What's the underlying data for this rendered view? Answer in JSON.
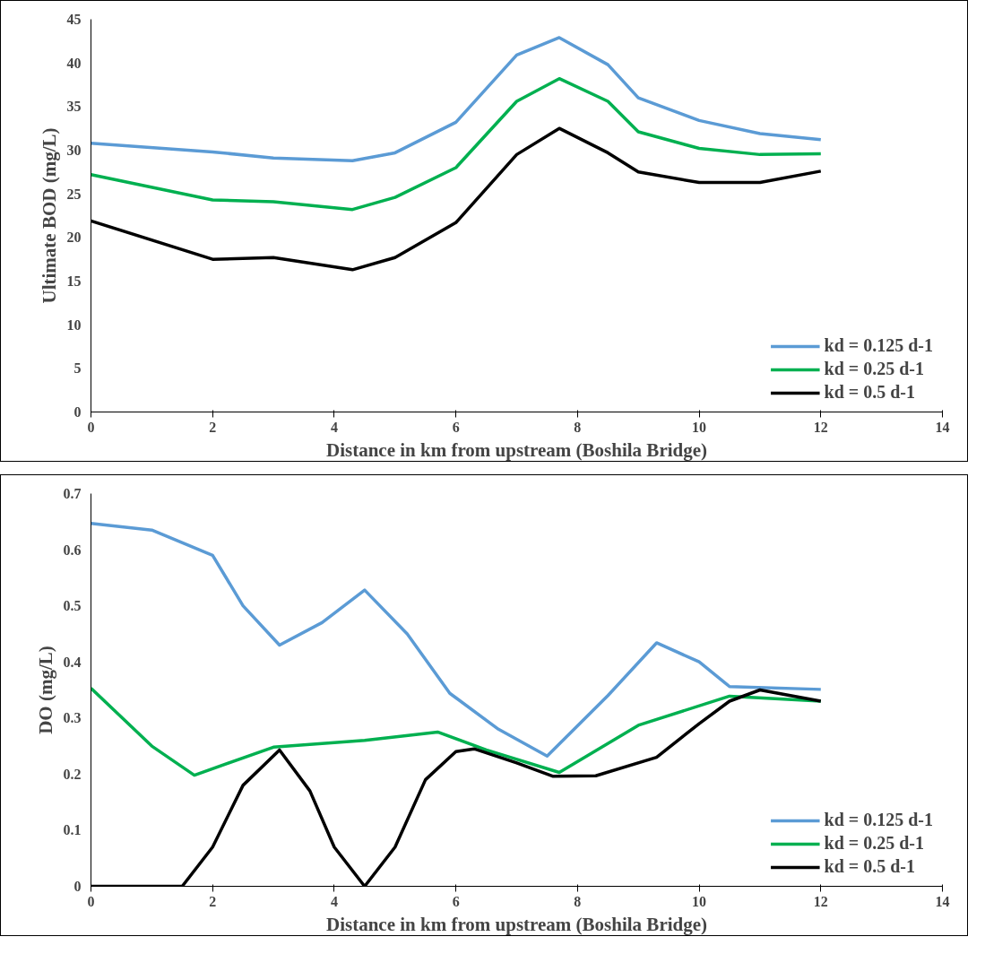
{
  "chart_data": [
    {
      "type": "line",
      "xlabel": "Distance in km from upstream (Boshila Bridge)",
      "ylabel": "Ultimate BOD (mg/L)",
      "xlim": [
        0,
        14
      ],
      "xticks": [
        0,
        2,
        4,
        6,
        8,
        10,
        12,
        14
      ],
      "ylim": [
        0,
        45
      ],
      "yticks": [
        0,
        5,
        10,
        15,
        20,
        25,
        30,
        35,
        40,
        45
      ],
      "grid": false,
      "legend": "bottom right",
      "marker": "none",
      "line_style": "solid",
      "x": [
        0,
        2,
        3,
        4.3,
        5,
        6,
        7,
        7.7,
        8.5,
        9,
        10,
        11,
        12
      ],
      "series": [
        {
          "name": "kd = 0.125 d-1",
          "color": "#5b9bd5",
          "values": [
            30.8,
            29.8,
            29.1,
            28.8,
            29.7,
            33.2,
            40.9,
            42.9,
            39.8,
            36,
            33.4,
            31.9,
            31.2
          ]
        },
        {
          "name": "kd = 0.25 d-1",
          "color": "#00b050",
          "values": [
            27.2,
            24.3,
            24.1,
            23.2,
            24.6,
            28.0,
            35.6,
            38.2,
            35.6,
            32.1,
            30.2,
            29.5,
            29.6
          ]
        },
        {
          "name": "kd = 0.5 d-1",
          "color": "#000000",
          "values": [
            21.9,
            17.5,
            17.7,
            16.3,
            17.7,
            21.7,
            29.5,
            32.5,
            29.7,
            27.5,
            26.3,
            26.3,
            27.6
          ]
        }
      ]
    },
    {
      "type": "line",
      "xlabel": "Distance in km from upstream (Boshila Bridge)",
      "ylabel": "DO (mg/L)",
      "xlim": [
        0,
        14
      ],
      "xticks": [
        0,
        2,
        4,
        6,
        8,
        10,
        12,
        14
      ],
      "ylim": [
        0,
        0.7
      ],
      "yticks": [
        0,
        0.1,
        0.2,
        0.3,
        0.4,
        0.5,
        0.6,
        0.7
      ],
      "grid": false,
      "legend": "bottom right",
      "marker": "none",
      "line_style": "solid",
      "series": [
        {
          "name": "kd = 0.125 d-1",
          "color": "#5b9bd5",
          "x": [
            0,
            1,
            2,
            2.5,
            3.1,
            3.8,
            4.5,
            5.2,
            5.9,
            6.7,
            7.5,
            8.5,
            9.3,
            10,
            10.5,
            12
          ],
          "values": [
            0.647,
            0.635,
            0.59,
            0.5,
            0.43,
            0.47,
            0.528,
            0.45,
            0.344,
            0.28,
            0.232,
            0.34,
            0.434,
            0.4,
            0.356,
            0.351
          ]
        },
        {
          "name": "kd = 0.25 d-1",
          "color": "#00b050",
          "x": [
            0,
            1,
            1.7,
            3,
            4.5,
            5.7,
            6.5,
            7.7,
            9,
            10.5,
            12
          ],
          "values": [
            0.353,
            0.25,
            0.198,
            0.248,
            0.26,
            0.275,
            0.243,
            0.203,
            0.287,
            0.339,
            0.33
          ]
        },
        {
          "name": "kd = 0.5 d-1",
          "color": "#000000",
          "x": [
            0,
            1.5,
            2,
            2.5,
            3.1,
            3.6,
            4,
            4.5,
            5,
            5.5,
            6,
            6.3,
            7,
            7.6,
            8.3,
            9.3,
            10,
            10.5,
            11,
            11.5,
            12
          ],
          "values": [
            0,
            0,
            0.07,
            0.18,
            0.243,
            0.17,
            0.07,
            0,
            0.07,
            0.19,
            0.24,
            0.245,
            0.22,
            0.196,
            0.197,
            0.23,
            0.29,
            0.33,
            0.35,
            0.34,
            0.33
          ]
        }
      ]
    }
  ]
}
